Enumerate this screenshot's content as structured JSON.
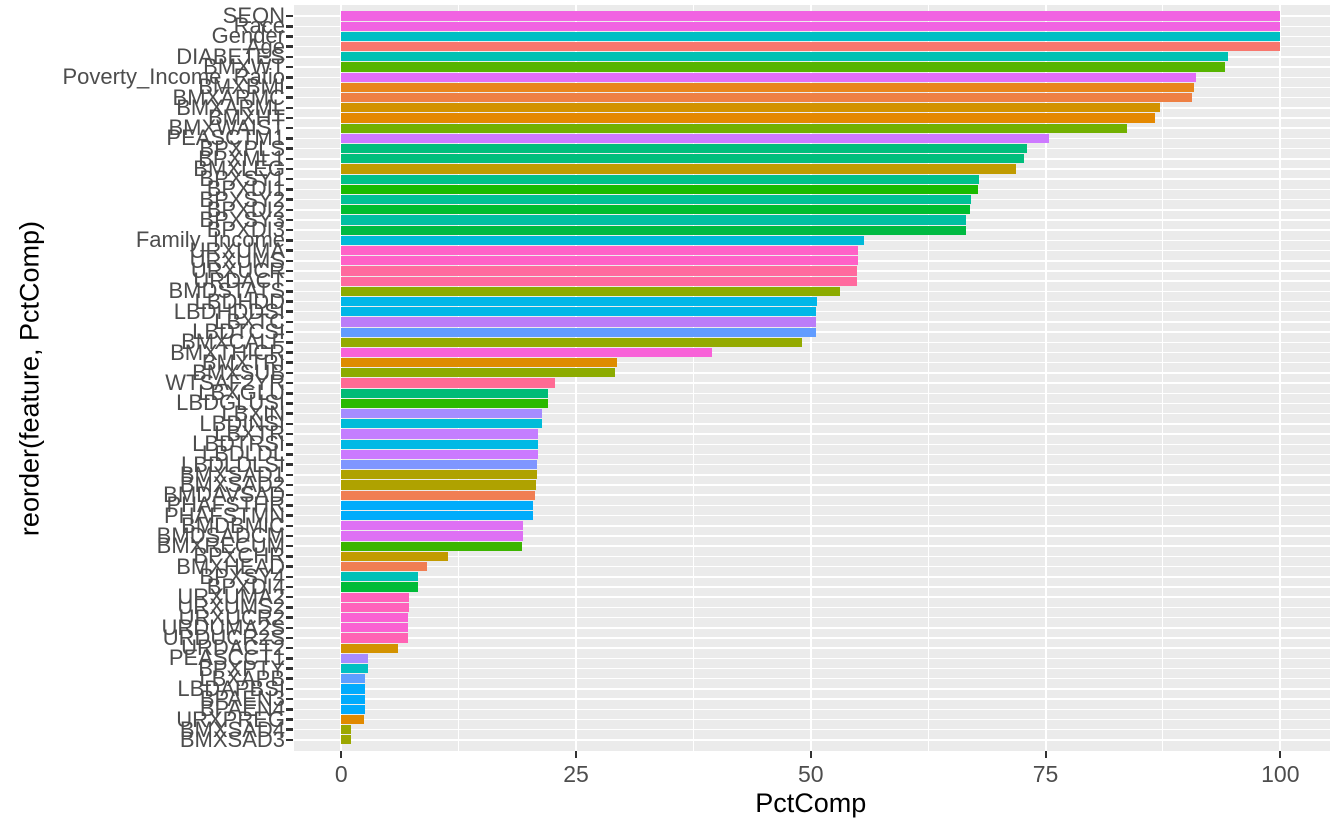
{
  "chart_data": {
    "type": "bar",
    "orientation": "horizontal",
    "title": "",
    "xlabel": "PctComp",
    "ylabel": "reorder(feature, PctComp)",
    "xlim": [
      -5,
      106
    ],
    "x_ticks": [
      0,
      25,
      50,
      75,
      100
    ],
    "x_minor_gridlines": [
      12.5,
      37.5,
      62.5,
      87.5
    ],
    "grid": true,
    "legend_position": "none",
    "panel_bg": "#EBEBEB",
    "grid_color": "#FFFFFF",
    "axis_text_color": "#4D4D4D",
    "axis_title_color": "#000000",
    "tick_color": "#333333",
    "bars": [
      {
        "feature": "SEQN",
        "value": 100.0,
        "color": "#F163E2"
      },
      {
        "feature": "Race",
        "value": 100.0,
        "color": "#F163E2"
      },
      {
        "feature": "Gender",
        "value": 100.0,
        "color": "#00BFC4"
      },
      {
        "feature": "Age",
        "value": 100.0,
        "color": "#F8766D"
      },
      {
        "feature": "DIABETES",
        "value": 94.4,
        "color": "#00C1B3"
      },
      {
        "feature": "BMXWT",
        "value": 94.1,
        "color": "#56B400"
      },
      {
        "feature": "Poverty_Income_Ratio",
        "value": 91.0,
        "color": "#E26EF7"
      },
      {
        "feature": "BMXBMI",
        "value": 90.8,
        "color": "#E8861D"
      },
      {
        "feature": "BMXARMC",
        "value": 90.6,
        "color": "#EE8044"
      },
      {
        "feature": "BMXARML",
        "value": 87.2,
        "color": "#D29200"
      },
      {
        "feature": "BMXHT",
        "value": 86.7,
        "color": "#E48800"
      },
      {
        "feature": "BMXWAIST",
        "value": 83.7,
        "color": "#72B000"
      },
      {
        "feature": "PEASCTM1",
        "value": 75.4,
        "color": "#CD79FF"
      },
      {
        "feature": "BPXPLS",
        "value": 73.0,
        "color": "#00BE7C"
      },
      {
        "feature": "BPXML1",
        "value": 72.7,
        "color": "#00BE7C"
      },
      {
        "feature": "BMXLEG",
        "value": 71.9,
        "color": "#C09B00"
      },
      {
        "feature": "BPXSY1",
        "value": 67.9,
        "color": "#00C189"
      },
      {
        "feature": "BPXDI1",
        "value": 67.8,
        "color": "#19BB00"
      },
      {
        "feature": "BPXSY2",
        "value": 67.1,
        "color": "#00C196"
      },
      {
        "feature": "BPXDI2",
        "value": 67.0,
        "color": "#00BD2F"
      },
      {
        "feature": "BPXSY3",
        "value": 66.5,
        "color": "#00BFA2"
      },
      {
        "feature": "BPXDI3",
        "value": 66.5,
        "color": "#00BA42"
      },
      {
        "feature": "Family_Income",
        "value": 55.7,
        "color": "#00BAD8"
      },
      {
        "feature": "URXUMA",
        "value": 55.0,
        "color": "#FF61C7"
      },
      {
        "feature": "URXUMS",
        "value": 55.0,
        "color": "#FF61C7"
      },
      {
        "feature": "URXUCR",
        "value": 54.9,
        "color": "#FF6A9E"
      },
      {
        "feature": "URDACT",
        "value": 54.9,
        "color": "#FF6A9E"
      },
      {
        "feature": "BMDSTATS",
        "value": 53.1,
        "color": "#8CAB00"
      },
      {
        "feature": "LBDHDD",
        "value": 50.7,
        "color": "#00B7E8"
      },
      {
        "feature": "LBDHDDSI",
        "value": 50.6,
        "color": "#00B7E8"
      },
      {
        "feature": "LBXTC",
        "value": 50.6,
        "color": "#BB7DF8"
      },
      {
        "feature": "LBDTCSI",
        "value": 50.6,
        "color": "#619CFF"
      },
      {
        "feature": "BMXCALF",
        "value": 49.1,
        "color": "#94AA00"
      },
      {
        "feature": "BMXTHICR",
        "value": 39.5,
        "color": "#F862D8"
      },
      {
        "feature": "BMXTRI",
        "value": 29.4,
        "color": "#DE8C00"
      },
      {
        "feature": "BMXSUB",
        "value": 29.1,
        "color": "#8CAB00"
      },
      {
        "feature": "WTSAF2YR",
        "value": 22.8,
        "color": "#FF6B94"
      },
      {
        "feature": "LBXGLU",
        "value": 22.0,
        "color": "#00BB77"
      },
      {
        "feature": "LBDGLUSI",
        "value": 22.0,
        "color": "#2ABA00"
      },
      {
        "feature": "LBXIN",
        "value": 21.4,
        "color": "#A58CFF"
      },
      {
        "feature": "LBDINSI",
        "value": 21.4,
        "color": "#00BCD9"
      },
      {
        "feature": "LBXTR",
        "value": 21.0,
        "color": "#C47EFF"
      },
      {
        "feature": "LBDTRSI",
        "value": 21.0,
        "color": "#00B9E5"
      },
      {
        "feature": "LBDLDL",
        "value": 20.9,
        "color": "#CB79FF"
      },
      {
        "feature": "LBDLDLSI",
        "value": 20.8,
        "color": "#7F96FF"
      },
      {
        "feature": "BMXSAD1",
        "value": 20.8,
        "color": "#AFA200"
      },
      {
        "feature": "BMXSAD2",
        "value": 20.7,
        "color": "#AFA200"
      },
      {
        "feature": "BMDAVSAD",
        "value": 20.6,
        "color": "#F07E53"
      },
      {
        "feature": "PHAFSTHR",
        "value": 20.4,
        "color": "#00ACFB"
      },
      {
        "feature": "PHAFSTMN",
        "value": 20.4,
        "color": "#00ACFB"
      },
      {
        "feature": "BMDBMIC",
        "value": 19.3,
        "color": "#DE70F4"
      },
      {
        "feature": "BMDSADCM",
        "value": 19.3,
        "color": "#DE70F4"
      },
      {
        "feature": "BMXRECUM",
        "value": 19.2,
        "color": "#3CB500"
      },
      {
        "feature": "BPXCHR",
        "value": 11.4,
        "color": "#C29B00"
      },
      {
        "feature": "BMXHEAD",
        "value": 9.1,
        "color": "#F07E53"
      },
      {
        "feature": "BPXSY4",
        "value": 8.2,
        "color": "#00C1B7"
      },
      {
        "feature": "BPXDI4",
        "value": 8.2,
        "color": "#00BB39"
      },
      {
        "feature": "URXUMA2",
        "value": 7.2,
        "color": "#FF62BB"
      },
      {
        "feature": "URXUMS2",
        "value": 7.2,
        "color": "#FF62BB"
      },
      {
        "feature": "URXUCR2",
        "value": 7.1,
        "color": "#FA61D2"
      },
      {
        "feature": "URDUMA2S",
        "value": 7.1,
        "color": "#FA61D2"
      },
      {
        "feature": "URDUCR2S",
        "value": 7.1,
        "color": "#FF63B4"
      },
      {
        "feature": "URDACT2",
        "value": 6.0,
        "color": "#D39200"
      },
      {
        "feature": "PEASCCT1",
        "value": 2.8,
        "color": "#A78CFF"
      },
      {
        "feature": "BPXPTY",
        "value": 2.8,
        "color": "#00C0C2"
      },
      {
        "feature": "LBXAPB",
        "value": 2.5,
        "color": "#5E9EFF"
      },
      {
        "feature": "LBDAPBSI",
        "value": 2.5,
        "color": "#00ABFD"
      },
      {
        "feature": "BPAEN3",
        "value": 2.5,
        "color": "#00ABFD"
      },
      {
        "feature": "BPAEN4",
        "value": 2.5,
        "color": "#00ABFD"
      },
      {
        "feature": "URXPREG",
        "value": 2.4,
        "color": "#E18A00"
      },
      {
        "feature": "BMXSAD4",
        "value": 1.0,
        "color": "#9CA700"
      },
      {
        "feature": "BMXSAD3",
        "value": 1.0,
        "color": "#9CA700"
      }
    ]
  }
}
